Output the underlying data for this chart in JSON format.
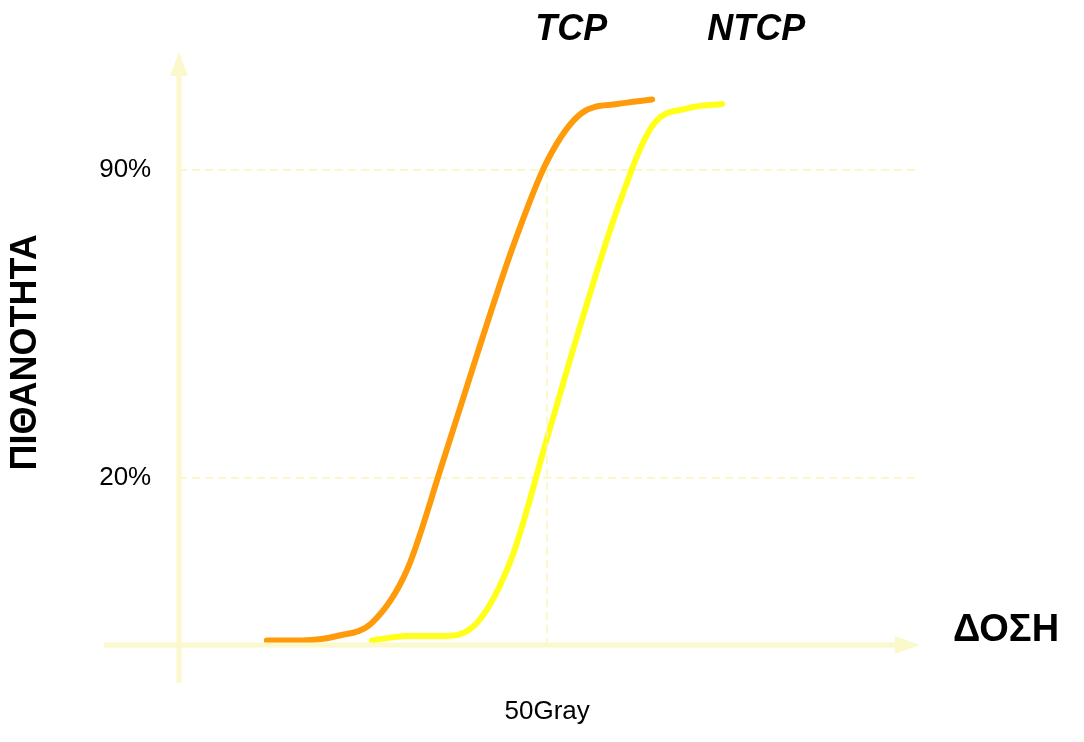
{
  "chart_data": {
    "type": "line",
    "ylabel": "ΠΙΘΑΝΟΤΗΤΑ",
    "categories": [
      null,
      null,
      null,
      null,
      null,
      null,
      null,
      null,
      null,
      null,
      null,
      null,
      null,
      null,
      null,
      null,
      null,
      null,
      null,
      null,
      null
    ],
    "ylim": [
      -18,
      115
    ],
    "yticks": [
      {
        "value": 20,
        "label": "20%"
      },
      {
        "value": 90,
        "label": "90%"
      }
    ],
    "grid": "y",
    "legend": false,
    "marker": "none",
    "line_style": "solid",
    "annotations": [
      "ΔΟΣΗ",
      "50Gray"
    ],
    "series": [
      {
        "name": "TCP",
        "color": "#ff9a0a",
        "values": [
          null,
          null,
          -17,
          -17,
          -16,
          -13,
          -1,
          23,
          48,
          72,
          92,
          103,
          105,
          106,
          null,
          null,
          null,
          null,
          null,
          null,
          null
        ]
      },
      {
        "name": "NTCP",
        "color": "#ffff1a",
        "values": [
          null,
          null,
          null,
          null,
          null,
          -17,
          -16,
          -16,
          -13,
          2,
          29,
          56,
          81,
          100,
          104,
          105,
          null,
          null,
          null,
          null,
          null
        ]
      }
    ]
  }
}
